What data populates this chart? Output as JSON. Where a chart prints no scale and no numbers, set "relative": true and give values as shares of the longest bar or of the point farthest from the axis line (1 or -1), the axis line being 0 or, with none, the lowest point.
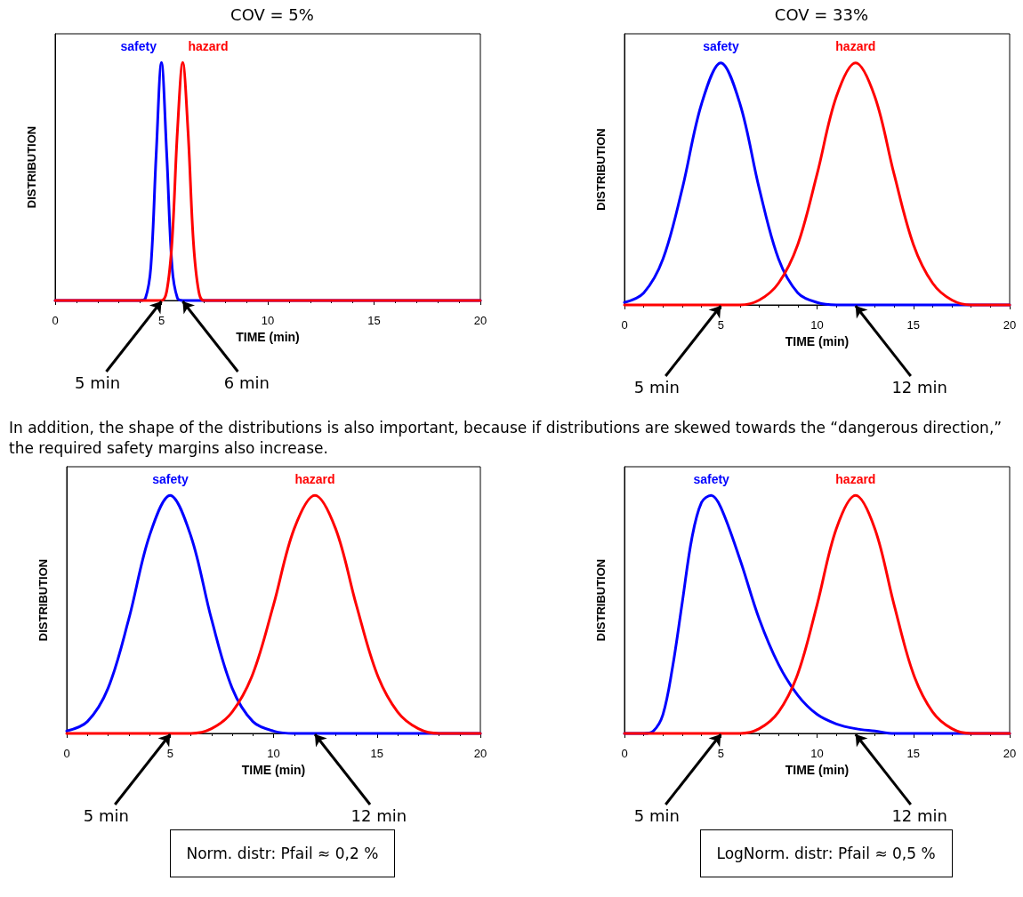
{
  "chart_data": [
    {
      "type": "line",
      "title": "COV = 5%",
      "xlabel": "TIME (min)",
      "ylabel": "DISTRIBUTION",
      "relative": true,
      "xlim": [
        0,
        20
      ],
      "xticks": [
        0,
        5,
        10,
        15,
        20
      ],
      "tick_labels": "x",
      "series": [
        {
          "name": "safety",
          "color": "#0000ff",
          "x": [
            0,
            4,
            4.25,
            4.5,
            4.75,
            5,
            5.25,
            5.5,
            5.75,
            6,
            20
          ],
          "values": [
            0,
            0,
            0.01,
            0.14,
            0.61,
            1,
            0.61,
            0.14,
            0.01,
            0,
            0
          ]
        },
        {
          "name": "hazard",
          "color": "#ff0000",
          "x": [
            0,
            5,
            5.25,
            5.5,
            5.75,
            6,
            6.25,
            6.5,
            6.75,
            7,
            20
          ],
          "values": [
            0,
            0,
            0.04,
            0.25,
            0.71,
            1,
            0.71,
            0.25,
            0.04,
            0,
            0
          ]
        }
      ],
      "annotations": [
        {
          "text": "5 min",
          "x": 5,
          "y": 0
        },
        {
          "text": "6 min",
          "x": 6,
          "y": 0
        }
      ]
    },
    {
      "type": "line",
      "title": "COV = 33%",
      "xlabel": "TIME (min)",
      "ylabel": "DISTRIBUTION",
      "relative": true,
      "xlim": [
        0,
        20
      ],
      "xticks": [
        0,
        5,
        10,
        15,
        20
      ],
      "tick_labels": "x",
      "series": [
        {
          "name": "safety",
          "color": "#0000ff",
          "x": [
            0,
            1,
            2,
            3,
            4,
            5,
            6,
            7,
            8,
            9,
            10,
            11,
            12,
            20
          ],
          "values": [
            0.01,
            0.05,
            0.19,
            0.48,
            0.83,
            1,
            0.83,
            0.48,
            0.19,
            0.05,
            0.01,
            0,
            0,
            0
          ]
        },
        {
          "name": "hazard",
          "color": "#ff0000",
          "x": [
            0,
            6,
            7,
            8,
            9,
            10,
            11,
            12,
            13,
            14,
            15,
            16,
            17,
            18,
            20
          ],
          "values": [
            0,
            0,
            0.02,
            0.09,
            0.25,
            0.54,
            0.86,
            1,
            0.86,
            0.54,
            0.25,
            0.09,
            0.02,
            0,
            0
          ]
        }
      ],
      "annotations": [
        {
          "text": "5 min",
          "x": 5,
          "y": 0
        },
        {
          "text": "12 min",
          "x": 12,
          "y": 0
        }
      ]
    },
    {
      "type": "line",
      "subtitle": "In addition, the shape of the distributions is also important, because if distributions are skewed towards the “dangerous direction,” the required safety margins also increase.",
      "xlabel": "TIME (min)",
      "ylabel": "DISTRIBUTION",
      "relative": true,
      "xlim": [
        0,
        20
      ],
      "xticks": [
        0,
        5,
        10,
        15,
        20
      ],
      "tick_labels": "x",
      "series": [
        {
          "name": "safety",
          "color": "#0000ff",
          "x": [
            0,
            1,
            2,
            3,
            4,
            5,
            6,
            7,
            8,
            9,
            10,
            11,
            12,
            20
          ],
          "values": [
            0.01,
            0.05,
            0.19,
            0.48,
            0.83,
            1,
            0.83,
            0.48,
            0.19,
            0.05,
            0.01,
            0,
            0,
            0
          ]
        },
        {
          "name": "hazard",
          "color": "#ff0000",
          "x": [
            0,
            6,
            7,
            8,
            9,
            10,
            11,
            12,
            13,
            14,
            15,
            16,
            17,
            18,
            20
          ],
          "values": [
            0,
            0,
            0.02,
            0.09,
            0.25,
            0.54,
            0.86,
            1,
            0.86,
            0.54,
            0.25,
            0.09,
            0.02,
            0,
            0
          ]
        }
      ],
      "annotations": [
        {
          "text": "5 min",
          "x": 5,
          "y": 0
        },
        {
          "text": "12 min",
          "x": 12,
          "y": 0
        },
        "Norm. distr: Pfail ≈ 0,2 %"
      ]
    },
    {
      "type": "line",
      "xlabel": "TIME (min)",
      "ylabel": "DISTRIBUTION",
      "relative": true,
      "xlim": [
        0,
        20
      ],
      "xticks": [
        0,
        5,
        10,
        15,
        20
      ],
      "tick_labels": "x",
      "series": [
        {
          "name": "safety",
          "color": "#0000ff",
          "x": [
            0,
            1,
            1.5,
            2,
            2.5,
            3,
            3.5,
            4,
            4.5,
            5,
            6,
            7,
            8,
            9,
            10,
            11,
            12,
            13,
            14,
            20
          ],
          "values": [
            0,
            0,
            0.01,
            0.08,
            0.28,
            0.55,
            0.82,
            0.97,
            1,
            0.95,
            0.73,
            0.48,
            0.29,
            0.16,
            0.08,
            0.04,
            0.02,
            0.01,
            0,
            0
          ]
        },
        {
          "name": "hazard",
          "color": "#ff0000",
          "x": [
            0,
            6,
            7,
            8,
            9,
            10,
            11,
            12,
            13,
            14,
            15,
            16,
            17,
            18,
            20
          ],
          "values": [
            0,
            0,
            0.02,
            0.09,
            0.25,
            0.54,
            0.86,
            1,
            0.86,
            0.54,
            0.25,
            0.09,
            0.02,
            0,
            0
          ]
        }
      ],
      "annotations": [
        {
          "text": "5 min",
          "x": 5,
          "y": 0
        },
        {
          "text": "12 min",
          "x": 12,
          "y": 0
        },
        "LogNorm. distr: Pfail ≈ 0,5 %"
      ]
    }
  ]
}
